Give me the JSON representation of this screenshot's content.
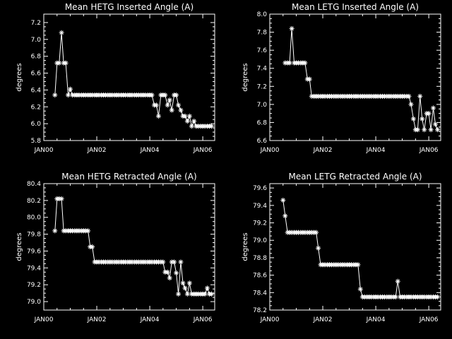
{
  "chart_data": [
    {
      "type": "line",
      "title": "Mean HETG Inserted Angle (A)",
      "ylabel": "degrees",
      "xlim": [
        0,
        6.45
      ],
      "ylim": [
        5.8,
        7.3
      ],
      "xticks": [
        0,
        2,
        4,
        6
      ],
      "xtick_labels": [
        "JAN00",
        "JAN02",
        "JAN04",
        "JAN06"
      ],
      "yticks": [
        5.8,
        6.0,
        6.2,
        6.4,
        6.6,
        6.8,
        7.0,
        7.2
      ],
      "ytick_labels": [
        "5.8",
        "6.0",
        "6.2",
        "6.4",
        "6.6",
        "6.8",
        "7.0",
        "7.2"
      ],
      "x": [
        0.42,
        0.5,
        0.58,
        0.67,
        0.75,
        0.83,
        0.92,
        1.0,
        1.08,
        1.17,
        1.25,
        1.33,
        1.42,
        1.5,
        1.58,
        1.67,
        1.75,
        1.83,
        1.92,
        2.0,
        2.08,
        2.17,
        2.25,
        2.33,
        2.42,
        2.5,
        2.58,
        2.67,
        2.75,
        2.83,
        2.92,
        3.0,
        3.08,
        3.17,
        3.25,
        3.33,
        3.42,
        3.5,
        3.58,
        3.67,
        3.75,
        3.83,
        3.92,
        4.0,
        4.08,
        4.17,
        4.25,
        4.33,
        4.42,
        4.5,
        4.58,
        4.67,
        4.75,
        4.83,
        4.92,
        5.0,
        5.08,
        5.17,
        5.25,
        5.33,
        5.42,
        5.5,
        5.58,
        5.67,
        5.75,
        5.83,
        5.92,
        6.0,
        6.08,
        6.17,
        6.25,
        6.33
      ],
      "y": [
        6.34,
        6.72,
        6.72,
        7.08,
        6.72,
        6.72,
        6.34,
        6.41,
        6.34,
        6.34,
        6.34,
        6.34,
        6.34,
        6.34,
        6.34,
        6.34,
        6.34,
        6.34,
        6.34,
        6.34,
        6.34,
        6.34,
        6.34,
        6.34,
        6.34,
        6.34,
        6.34,
        6.34,
        6.34,
        6.34,
        6.34,
        6.34,
        6.34,
        6.34,
        6.34,
        6.34,
        6.34,
        6.34,
        6.34,
        6.34,
        6.34,
        6.34,
        6.34,
        6.34,
        6.34,
        6.22,
        6.22,
        6.09,
        6.34,
        6.34,
        6.34,
        6.22,
        6.28,
        6.16,
        6.34,
        6.34,
        6.22,
        6.16,
        6.09,
        6.09,
        6.03,
        6.09,
        5.97,
        6.03,
        5.97,
        5.97,
        5.97,
        5.97,
        5.97,
        5.97,
        5.97,
        5.97
      ]
    },
    {
      "type": "line",
      "title": "Mean LETG Inserted Angle (A)",
      "ylabel": "degrees",
      "xlim": [
        0,
        6.45
      ],
      "ylim": [
        6.6,
        8.0
      ],
      "xticks": [
        0,
        2,
        4,
        6
      ],
      "xtick_labels": [
        "JAN00",
        "JAN02",
        "JAN04",
        "JAN06"
      ],
      "yticks": [
        6.6,
        6.8,
        7.0,
        7.2,
        7.4,
        7.6,
        7.8,
        8.0
      ],
      "ytick_labels": [
        "6.6",
        "6.8",
        "7.0",
        "7.2",
        "7.4",
        "7.6",
        "7.8",
        "8.0"
      ],
      "x": [
        0.58,
        0.67,
        0.75,
        0.83,
        0.92,
        1.0,
        1.08,
        1.17,
        1.25,
        1.33,
        1.42,
        1.5,
        1.58,
        1.67,
        1.75,
        1.83,
        1.92,
        2.0,
        2.08,
        2.17,
        2.25,
        2.33,
        2.42,
        2.5,
        2.58,
        2.67,
        2.75,
        2.83,
        2.92,
        3.0,
        3.08,
        3.17,
        3.25,
        3.33,
        3.42,
        3.5,
        3.58,
        3.67,
        3.75,
        3.83,
        3.92,
        4.0,
        4.08,
        4.17,
        4.25,
        4.33,
        4.42,
        4.5,
        4.58,
        4.67,
        4.75,
        4.83,
        4.92,
        5.0,
        5.08,
        5.17,
        5.25,
        5.33,
        5.42,
        5.5,
        5.58,
        5.67,
        5.75,
        5.83,
        5.92,
        6.0,
        6.08,
        6.17,
        6.25,
        6.33
      ],
      "y": [
        7.46,
        7.46,
        7.46,
        7.84,
        7.46,
        7.46,
        7.46,
        7.46,
        7.46,
        7.46,
        7.28,
        7.28,
        7.09,
        7.09,
        7.09,
        7.09,
        7.09,
        7.09,
        7.09,
        7.09,
        7.09,
        7.09,
        7.09,
        7.09,
        7.09,
        7.09,
        7.09,
        7.09,
        7.09,
        7.09,
        7.09,
        7.09,
        7.09,
        7.09,
        7.09,
        7.09,
        7.09,
        7.09,
        7.09,
        7.09,
        7.09,
        7.09,
        7.09,
        7.09,
        7.09,
        7.09,
        7.09,
        7.09,
        7.09,
        7.09,
        7.09,
        7.09,
        7.09,
        7.09,
        7.09,
        7.09,
        7.09,
        7.0,
        6.84,
        6.72,
        6.72,
        7.09,
        6.84,
        6.72,
        6.9,
        6.9,
        6.72,
        6.96,
        6.78,
        6.72
      ]
    },
    {
      "type": "line",
      "title": "Mean HETG Retracted Angle (A)",
      "ylabel": "degrees",
      "xlim": [
        0,
        6.45
      ],
      "ylim": [
        78.9,
        80.4
      ],
      "xticks": [
        0,
        2,
        4,
        6
      ],
      "xtick_labels": [
        "JAN00",
        "JAN02",
        "JAN04",
        "JAN06"
      ],
      "yticks": [
        79.0,
        79.2,
        79.4,
        79.6,
        79.8,
        80.0,
        80.2,
        80.4
      ],
      "ytick_labels": [
        "79.0",
        "79.2",
        "79.4",
        "79.6",
        "79.8",
        "80.0",
        "80.2",
        "80.4"
      ],
      "x": [
        0.42,
        0.5,
        0.58,
        0.67,
        0.75,
        0.83,
        0.92,
        1.0,
        1.08,
        1.17,
        1.25,
        1.33,
        1.42,
        1.5,
        1.58,
        1.67,
        1.75,
        1.83,
        1.92,
        2.0,
        2.08,
        2.17,
        2.25,
        2.33,
        2.42,
        2.5,
        2.58,
        2.67,
        2.75,
        2.83,
        2.92,
        3.0,
        3.08,
        3.17,
        3.25,
        3.33,
        3.42,
        3.5,
        3.58,
        3.67,
        3.75,
        3.83,
        3.92,
        4.0,
        4.08,
        4.17,
        4.25,
        4.33,
        4.42,
        4.5,
        4.58,
        4.67,
        4.75,
        4.83,
        4.92,
        5.0,
        5.08,
        5.17,
        5.25,
        5.33,
        5.42,
        5.5,
        5.58,
        5.67,
        5.75,
        5.83,
        5.92,
        6.0,
        6.08,
        6.17,
        6.25,
        6.33
      ],
      "y": [
        79.84,
        80.22,
        80.22,
        80.22,
        79.84,
        79.84,
        79.84,
        79.84,
        79.84,
        79.84,
        79.84,
        79.84,
        79.84,
        79.84,
        79.84,
        79.84,
        79.65,
        79.65,
        79.47,
        79.47,
        79.47,
        79.47,
        79.47,
        79.47,
        79.47,
        79.47,
        79.47,
        79.47,
        79.47,
        79.47,
        79.47,
        79.47,
        79.47,
        79.47,
        79.47,
        79.47,
        79.47,
        79.47,
        79.47,
        79.47,
        79.47,
        79.47,
        79.47,
        79.47,
        79.47,
        79.47,
        79.47,
        79.47,
        79.47,
        79.47,
        79.35,
        79.35,
        79.28,
        79.47,
        79.47,
        79.34,
        79.09,
        79.47,
        79.22,
        79.16,
        79.09,
        79.22,
        79.09,
        79.09,
        79.09,
        79.09,
        79.09,
        79.09,
        79.09,
        79.16,
        79.09,
        79.09
      ]
    },
    {
      "type": "line",
      "title": "Mean LETG Retracted Angle (A)",
      "ylabel": "degrees",
      "xlim": [
        0,
        6.45
      ],
      "ylim": [
        78.2,
        79.65
      ],
      "xticks": [
        0,
        2,
        4,
        6
      ],
      "xtick_labels": [
        "JAN00",
        "JAN02",
        "JAN04",
        "JAN06"
      ],
      "yticks": [
        78.2,
        78.4,
        78.6,
        78.8,
        79.0,
        79.2,
        79.4,
        79.6
      ],
      "ytick_labels": [
        "78.2",
        "78.4",
        "78.6",
        "78.8",
        "79.0",
        "79.2",
        "79.4",
        "79.6"
      ],
      "x": [
        0.5,
        0.58,
        0.67,
        0.75,
        0.83,
        0.92,
        1.0,
        1.08,
        1.17,
        1.25,
        1.33,
        1.42,
        1.5,
        1.58,
        1.67,
        1.75,
        1.83,
        1.92,
        2.0,
        2.08,
        2.17,
        2.25,
        2.33,
        2.42,
        2.5,
        2.58,
        2.67,
        2.75,
        2.83,
        2.92,
        3.0,
        3.08,
        3.17,
        3.25,
        3.33,
        3.42,
        3.5,
        3.58,
        3.67,
        3.75,
        3.83,
        3.92,
        4.0,
        4.08,
        4.17,
        4.25,
        4.33,
        4.42,
        4.5,
        4.58,
        4.67,
        4.75,
        4.83,
        4.92,
        5.0,
        5.08,
        5.17,
        5.25,
        5.33,
        5.42,
        5.5,
        5.58,
        5.67,
        5.75,
        5.83,
        5.92,
        6.0,
        6.08,
        6.17,
        6.25,
        6.33
      ],
      "y": [
        79.46,
        79.28,
        79.09,
        79.09,
        79.09,
        79.09,
        79.09,
        79.09,
        79.09,
        79.09,
        79.09,
        79.09,
        79.09,
        79.09,
        79.09,
        79.09,
        78.91,
        78.72,
        78.72,
        78.72,
        78.72,
        78.72,
        78.72,
        78.72,
        78.72,
        78.72,
        78.72,
        78.72,
        78.72,
        78.72,
        78.72,
        78.72,
        78.72,
        78.72,
        78.72,
        78.44,
        78.35,
        78.35,
        78.35,
        78.35,
        78.35,
        78.35,
        78.35,
        78.35,
        78.35,
        78.35,
        78.35,
        78.35,
        78.35,
        78.35,
        78.35,
        78.35,
        78.53,
        78.35,
        78.35,
        78.35,
        78.35,
        78.35,
        78.35,
        78.35,
        78.35,
        78.35,
        78.35,
        78.35,
        78.35,
        78.35,
        78.35,
        78.35,
        78.35,
        78.35,
        78.35
      ]
    }
  ]
}
